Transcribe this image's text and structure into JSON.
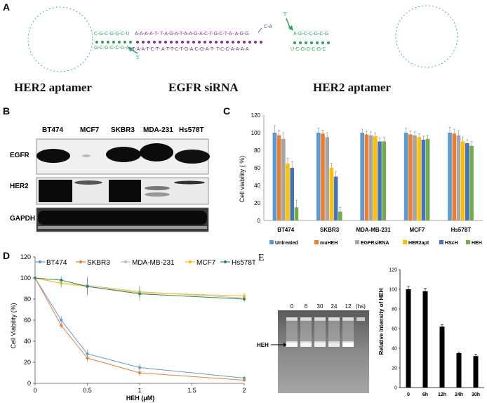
{
  "panel_letters": {
    "a": "A",
    "b": "B",
    "c": "C",
    "d": "D",
    "e": "E"
  },
  "panel_a": {
    "labels": [
      "HER2 aptamer",
      "EGFR siRNA",
      "HER2 aptamer"
    ],
    "prime_marks": [
      "5'",
      "5'"
    ],
    "left_loop_seq": "C-G-G-U-U-A-G-G-A-U-G-G-A-G-G-A-G-G-A-U-A-U",
    "right_loop_seq": "G-G-A-G-G-A-G-G-A-G-G-A-U-G-G-A-U-G",
    "top_green": "C-G-C-G-G-C-U",
    "bottom_green": "G-C-G-C-C-G-A",
    "top_purple": "A-A-A-A-T- T-A-G-A-T-A-A-G-A-C-T-G-C-T-A- A-G-G",
    "bottom_purple": "T-T-A-A-T-C-T- A-T-T-C-T-G-A-C-G-A-T- T-C-C-A-A-A-A",
    "right_top_green": "A-G-C-C-G-C-G",
    "right_bottom_green": "U-C-G-G-C-G-C",
    "loop_tail": "C-A"
  },
  "panel_b": {
    "cell_lines": [
      "BT474",
      "MCF7",
      "SKBR3",
      "MDA-231",
      "Hs578T"
    ],
    "proteins": [
      "EGFR",
      "HER2",
      "GAPDH"
    ]
  },
  "chart_c": {
    "type": "bar",
    "ylabel": "Cell viability ( %)",
    "ylim": [
      0,
      120
    ],
    "yticks": [
      "0",
      "20",
      "40",
      "60",
      "80",
      "100",
      "120"
    ],
    "categories": [
      "BT474",
      "SKBR3",
      "MDA-MB-231",
      "MCF7",
      "Hs578T"
    ],
    "series": [
      {
        "name": "Untreated",
        "color": "#5b9bd5",
        "values": [
          100,
          100,
          100,
          100,
          100
        ],
        "err": [
          8,
          5,
          4,
          5,
          6
        ]
      },
      {
        "name": "muHEH",
        "color": "#ed7d31",
        "values": [
          97,
          99,
          98,
          98,
          99
        ],
        "err": [
          6,
          4,
          4,
          4,
          5
        ]
      },
      {
        "name": "EGFRsiRNA",
        "color": "#a5a5a5",
        "values": [
          93,
          95,
          97,
          97,
          97
        ],
        "err": [
          7,
          5,
          4,
          4,
          5
        ]
      },
      {
        "name": "HER2apt",
        "color": "#ffc000",
        "values": [
          65,
          60,
          96,
          95,
          90
        ],
        "err": [
          6,
          5,
          4,
          4,
          5
        ]
      },
      {
        "name": "HScH",
        "color": "#4472c4",
        "values": [
          60,
          50,
          90,
          92,
          88
        ],
        "err": [
          7,
          6,
          4,
          4,
          4
        ]
      },
      {
        "name": "HEH",
        "color": "#70ad47",
        "values": [
          15,
          10,
          90,
          93,
          85
        ],
        "err": [
          8,
          5,
          5,
          4,
          5
        ]
      }
    ]
  },
  "chart_d": {
    "type": "line",
    "ylabel": "Cell Viability (%)",
    "xlabel": "HEH (μM)",
    "xlim": [
      0,
      2
    ],
    "ylim": [
      0,
      120
    ],
    "xticks": [
      "0",
      "0.5",
      "1",
      "1.5",
      "2"
    ],
    "yticks": [
      "0",
      "20",
      "40",
      "60",
      "80",
      "100",
      "120"
    ],
    "x": [
      0,
      0.25,
      0.5,
      1,
      2
    ],
    "series": [
      {
        "name": "BT474",
        "color": "#5b9bd5",
        "values": [
          100,
          60,
          28,
          15,
          5
        ],
        "err": [
          1,
          4,
          4,
          4,
          2
        ]
      },
      {
        "name": "SKBR3",
        "color": "#ed7d31",
        "values": [
          100,
          55,
          24,
          10,
          3
        ],
        "err": [
          1,
          3,
          3,
          3,
          1
        ]
      },
      {
        "name": "MDA-MB-231",
        "color": "#bdbdbd",
        "values": [
          100,
          95,
          93,
          87,
          81
        ],
        "err": [
          1,
          4,
          8,
          6,
          3
        ]
      },
      {
        "name": "MCF7",
        "color": "#ffc000",
        "values": [
          100,
          95,
          92,
          86,
          83
        ],
        "err": [
          1,
          4,
          7,
          5,
          3
        ]
      },
      {
        "name": "Hs578T",
        "color": "#2e8b57",
        "values": [
          100,
          98,
          92,
          85,
          80
        ],
        "err": [
          1,
          4,
          9,
          7,
          3
        ]
      }
    ]
  },
  "panel_e_gel": {
    "lane_labels": [
      "0",
      "6",
      "30",
      "24",
      "12",
      "(hs)"
    ],
    "band_label": "HEH"
  },
  "chart_e": {
    "type": "bar",
    "ylabel": "Relative intensity of HEH",
    "ylim": [
      0,
      120
    ],
    "yticks": [
      "0",
      "20",
      "40",
      "60",
      "80",
      "100",
      "120"
    ],
    "categories": [
      "0",
      "6h",
      "12h",
      "24h",
      "30h"
    ],
    "values": [
      100,
      98,
      62,
      35,
      32
    ],
    "err": [
      3,
      3,
      2,
      1,
      2
    ],
    "color": "#000000"
  }
}
